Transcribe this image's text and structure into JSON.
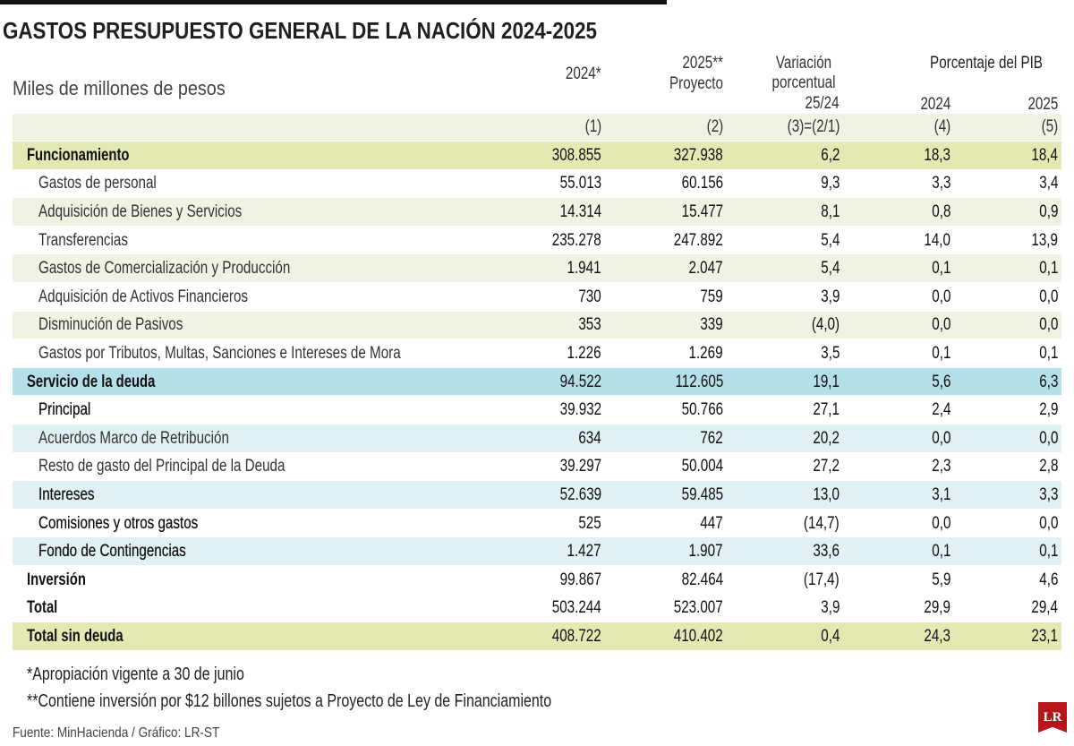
{
  "title": "GASTOS PRESUPUESTO GENERAL DE LA NACIÓN 2024-2025",
  "subtitle": "Miles de millones de pesos",
  "table": {
    "group_header": "Porcentaje del PIB",
    "columns": [
      {
        "lines": [
          "2024*"
        ],
        "number": "(1)"
      },
      {
        "lines": [
          "2025**",
          "Proyecto"
        ],
        "number": "(2)"
      },
      {
        "lines": [
          "Variación",
          "porcentual",
          "25/24"
        ],
        "number": "(3)=(2/1)"
      },
      {
        "lines": [
          "2024"
        ],
        "number": "(4)"
      },
      {
        "lines": [
          "2025"
        ],
        "number": "(5)"
      }
    ],
    "rows": [
      [
        "Funcionamiento",
        "308.855",
        "327.938",
        "6,2",
        "18,3",
        "18,4"
      ],
      [
        "Gastos de personal",
        "55.013",
        "60.156",
        "9,3",
        "3,3",
        "3,4"
      ],
      [
        "Adquisición de Bienes y Servicios",
        "14.314",
        "15.477",
        "8,1",
        "0,8",
        "0,9"
      ],
      [
        "Transferencias",
        "235.278",
        "247.892",
        "5,4",
        "14,0",
        "13,9"
      ],
      [
        "Gastos de Comercialización y Producción",
        "1.941",
        "2.047",
        "5,4",
        "0,1",
        "0,1"
      ],
      [
        "Adquisición de Activos Financieros",
        "730",
        "759",
        "3,9",
        "0,0",
        "0,0"
      ],
      [
        "Disminución de Pasivos",
        "353",
        "339",
        "(4,0)",
        "0,0",
        "0,0"
      ],
      [
        "Gastos por Tributos, Multas, Sanciones e Intereses de Mora",
        "1.226",
        "1.269",
        "3,5",
        "0,1",
        "0,1"
      ],
      [
        "Servicio de la deuda",
        "94.522",
        "112.605",
        "19,1",
        "5,6",
        "6,3"
      ],
      [
        "Principal",
        "39.932",
        "50.766",
        "27,1",
        "2,4",
        "2,9"
      ],
      [
        "Acuerdos Marco de Retribución",
        "634",
        "762",
        "20,2",
        "0,0",
        "0,0"
      ],
      [
        "Resto de gasto del Principal de la Deuda",
        "39.297",
        "50.004",
        "27,2",
        "2,3",
        "2,8"
      ],
      [
        "Intereses",
        "52.639",
        "59.485",
        "13,0",
        "3,1",
        "3,3"
      ],
      [
        "Comisiones y otros gastos",
        "525",
        "447",
        "(14,7)",
        "0,0",
        "0,0"
      ],
      [
        "Fondo de Contingencias",
        "1.427",
        "1.907",
        "33,6",
        "0,1",
        "0,1"
      ],
      [
        "Inversión",
        "99.867",
        "82.464",
        "(17,4)",
        "5,9",
        "4,6"
      ],
      [
        "Total",
        "503.244",
        "523.007",
        "3,9",
        "29,9",
        "29,4"
      ],
      [
        "Total sin deuda",
        "408.722",
        "410.402",
        "0,4",
        "24,3",
        "23,1"
      ]
    ]
  },
  "footnotes": [
    "*Apropiación vigente a 30 de junio",
    "**Contiene inversión por $12 billones sujetos a Proyecto de Ley de Financiamiento"
  ],
  "source": "Fuente: MinHacienda / Gráfico: LR-ST",
  "logo": "LR"
}
